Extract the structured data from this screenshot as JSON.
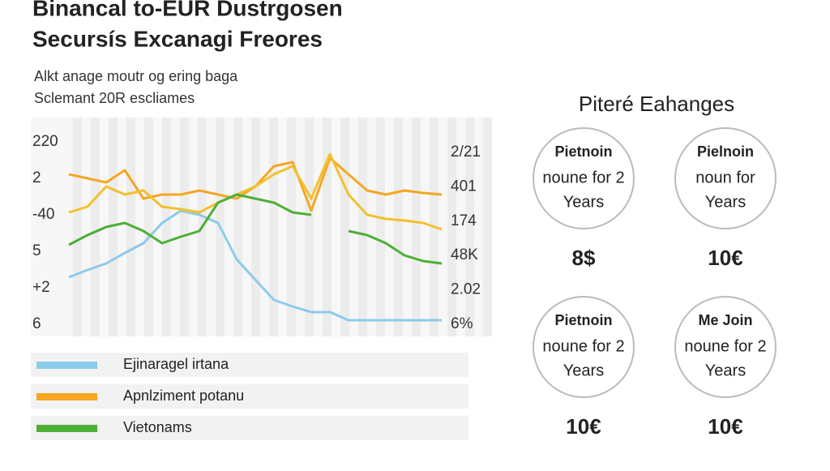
{
  "header": {
    "title": [
      "Binancal to-EUR Dustrgosen",
      "Secursís Excanagi Freores"
    ],
    "subtitle": [
      "Alkt anage moutr og ering baga",
      "Sclemant 20R escliames"
    ]
  },
  "chart_data": {
    "type": "line",
    "left_axis_labels": [
      "220",
      "2",
      "-40",
      "5",
      "+2",
      "6"
    ],
    "right_axis_labels": [
      "2/21",
      "401",
      "174",
      "48K",
      "2.02",
      "6%"
    ],
    "x": [
      0,
      1,
      2,
      3,
      4,
      5,
      6,
      7,
      8,
      9,
      10,
      11,
      12,
      13,
      14,
      15,
      16,
      17,
      18,
      19,
      20
    ],
    "xlim": [
      0,
      20
    ],
    "ylim": [
      0,
      100
    ],
    "series": [
      {
        "name": "Ejinaragel irtana",
        "color": "#8ccbea",
        "values": [
          23.2,
          26.8,
          30,
          35.2,
          40,
          50,
          56,
          54,
          50,
          32,
          22,
          12,
          8.8,
          6,
          6,
          2,
          2,
          2,
          2,
          2,
          2
        ]
      },
      {
        "name": "Apnlziment potanu",
        "color": "#f5a623",
        "values": [
          74,
          72,
          70,
          76,
          62,
          64,
          64,
          66,
          64,
          62,
          68,
          78,
          80,
          56,
          82,
          74,
          66,
          64,
          66,
          64.8,
          64
        ]
      },
      {
        "color": "#f2c12e",
        "values": [
          55.2,
          58,
          68,
          64,
          66,
          58,
          56.8,
          55.2,
          60,
          64,
          68,
          74,
          78,
          62,
          84,
          64,
          54,
          52,
          51.2,
          50,
          46.8
        ]
      },
      {
        "name": "Vietonams",
        "color": "#4caf36",
        "values": [
          39.2,
          44,
          48,
          50,
          46,
          40,
          43.2,
          46,
          60,
          64,
          62,
          60,
          55.2,
          54,
          null,
          46,
          44,
          40,
          34,
          31.2,
          30
        ]
      }
    ]
  },
  "panel": {
    "title": "Piteré Eahanges",
    "cards": [
      {
        "name": "Pietnoin",
        "line1": "noune for 2",
        "line2": "Years",
        "price": "8$"
      },
      {
        "name": "Pielnoin",
        "line1": "noun for",
        "line2": "Years",
        "price": "10€"
      },
      {
        "name": "Pietnoin",
        "line1": "noune for 2",
        "line2": "Years",
        "price": "10€"
      },
      {
        "name": "Me Join",
        "line1": "noune for 2",
        "line2": "Years",
        "price": "10€"
      }
    ]
  }
}
